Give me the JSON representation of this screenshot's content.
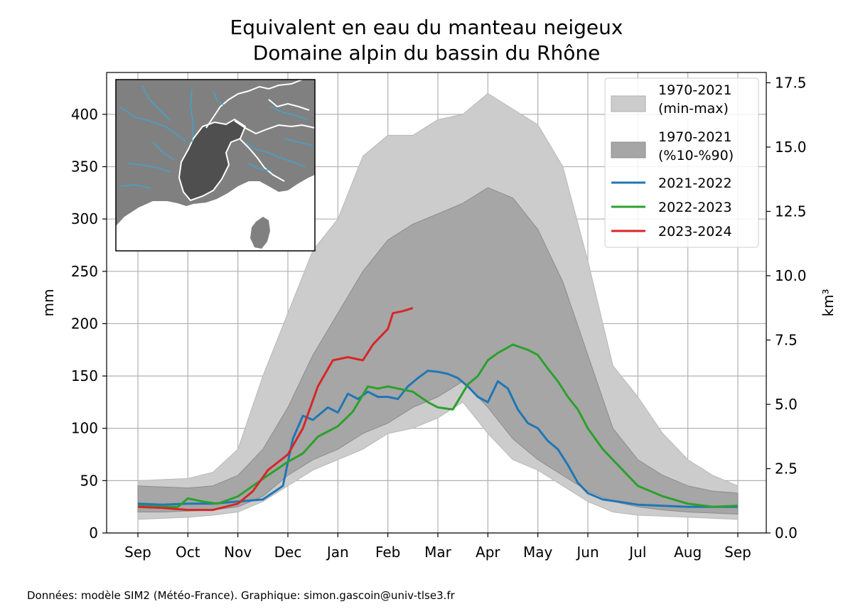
{
  "chart_data": {
    "type": "area",
    "title": "Equivalent en eau du manteau neigeux",
    "subtitle": "Domaine alpin du bassin du Rhône",
    "ylabel": "mm",
    "ylabel_right": "km³",
    "ylim": [
      0,
      440
    ],
    "ylim_right": [
      0,
      17.9
    ],
    "yticks": [
      0,
      50,
      100,
      150,
      200,
      250,
      300,
      350,
      400
    ],
    "yticks_right": [
      "0.0",
      "2.5",
      "5.0",
      "7.5",
      "10.0",
      "12.5",
      "15.0",
      "17.5"
    ],
    "x_tick_labels": [
      "Sep",
      "Oct",
      "Nov",
      "Dec",
      "Jan",
      "Feb",
      "Mar",
      "Apr",
      "May",
      "Jun",
      "Jul",
      "Aug",
      "Sep"
    ],
    "x_unit": "month index from September (0 = Sep, 12 = next Sep)",
    "grid": true,
    "legend_position": "top-right",
    "bands": [
      {
        "name": "1970-2021\n(min-max)",
        "color": "#cccccc",
        "x": [
          0,
          0.5,
          1,
          1.5,
          2,
          2.5,
          3,
          3.5,
          4,
          4.5,
          5,
          5.5,
          6,
          6.5,
          7,
          7.5,
          8,
          8.5,
          9,
          9.5,
          10,
          10.5,
          11,
          11.5,
          12
        ],
        "upper": [
          50,
          51,
          52,
          58,
          80,
          150,
          210,
          270,
          300,
          360,
          380,
          380,
          395,
          400,
          420,
          405,
          390,
          350,
          260,
          160,
          130,
          95,
          70,
          55,
          45
        ],
        "lower": [
          13,
          14,
          15,
          17,
          20,
          30,
          45,
          60,
          70,
          80,
          95,
          100,
          110,
          125,
          95,
          70,
          60,
          45,
          30,
          20,
          17,
          16,
          15,
          14,
          13
        ]
      },
      {
        "name": "1970-2021\n(%10-%90)",
        "color": "#a6a6a6",
        "x": [
          0,
          0.5,
          1,
          1.5,
          2,
          2.5,
          3,
          3.5,
          4,
          4.5,
          5,
          5.5,
          6,
          6.5,
          7,
          7.5,
          8,
          8.5,
          9,
          9.5,
          10,
          10.5,
          11,
          11.5,
          12
        ],
        "upper": [
          45,
          44,
          43,
          45,
          55,
          80,
          120,
          170,
          210,
          250,
          280,
          295,
          305,
          315,
          330,
          320,
          290,
          240,
          170,
          100,
          70,
          55,
          45,
          40,
          38
        ],
        "lower": [
          20,
          20,
          21,
          22,
          25,
          35,
          55,
          70,
          80,
          95,
          105,
          120,
          130,
          145,
          120,
          90,
          70,
          55,
          40,
          30,
          25,
          22,
          20,
          19,
          18
        ]
      }
    ],
    "series": [
      {
        "name": "2021-2022",
        "color": "#1f77b4",
        "x": [
          0,
          0.5,
          1,
          1.5,
          2,
          2.5,
          2.9,
          3.1,
          3.3,
          3.5,
          3.8,
          4,
          4.2,
          4.4,
          4.6,
          4.8,
          5,
          5.2,
          5.4,
          5.6,
          5.8,
          6,
          6.2,
          6.4,
          6.6,
          6.8,
          7,
          7.2,
          7.4,
          7.6,
          7.8,
          8,
          8.2,
          8.4,
          8.6,
          8.8,
          9,
          9.3,
          9.6,
          10,
          10.5,
          11,
          11.5,
          12
        ],
        "values": [
          28,
          27,
          28,
          28,
          30,
          32,
          45,
          90,
          112,
          108,
          120,
          115,
          133,
          128,
          135,
          130,
          130,
          128,
          140,
          148,
          155,
          154,
          152,
          148,
          140,
          130,
          125,
          145,
          138,
          118,
          105,
          100,
          88,
          80,
          65,
          48,
          38,
          32,
          30,
          27,
          26,
          25,
          25,
          25
        ]
      },
      {
        "name": "2022-2023",
        "color": "#2ca02c",
        "x": [
          0,
          0.5,
          0.8,
          1,
          1.3,
          1.6,
          2,
          2.3,
          2.6,
          3,
          3.3,
          3.6,
          4,
          4.3,
          4.6,
          4.8,
          5,
          5.2,
          5.5,
          5.8,
          6,
          6.3,
          6.6,
          6.8,
          7,
          7.2,
          7.5,
          7.8,
          8,
          8.2,
          8.4,
          8.6,
          8.8,
          9,
          9.3,
          9.6,
          10,
          10.5,
          11,
          11.5,
          12
        ],
        "values": [
          26,
          25,
          25,
          33,
          30,
          28,
          35,
          45,
          55,
          68,
          76,
          92,
          102,
          116,
          140,
          138,
          140,
          138,
          135,
          125,
          120,
          118,
          142,
          150,
          165,
          172,
          180,
          175,
          170,
          157,
          145,
          130,
          118,
          100,
          80,
          65,
          45,
          35,
          28,
          25,
          26
        ]
      },
      {
        "name": "2023-2024",
        "color": "#d62728",
        "x": [
          0,
          0.5,
          1,
          1.5,
          2,
          2.3,
          2.6,
          3,
          3.3,
          3.6,
          3.9,
          4.2,
          4.5,
          4.7,
          4.9,
          5,
          5.1,
          5.3,
          5.5
        ],
        "values": [
          25,
          24,
          22,
          22,
          28,
          40,
          60,
          75,
          100,
          140,
          165,
          168,
          165,
          180,
          190,
          195,
          210,
          212,
          215
        ]
      }
    ],
    "inset_map": "map of the Rhône basin alpine domain (dark grey) with rivers (light blue) and boundaries (white)",
    "footer": "Données: modèle SIM2 (Météo-France). Graphique: simon.gascoin@univ-tlse3.fr"
  }
}
